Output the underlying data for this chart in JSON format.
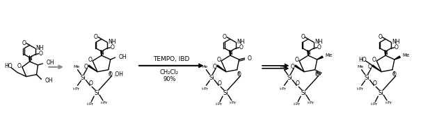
{
  "background_color": "#ffffff",
  "arrow1_color": "#888888",
  "arrow2_color": "#000000",
  "arrow3_color": "#000000",
  "reaction_label_line1": "TEMPO, IBD",
  "reaction_label_line2": "CH₂Cl₂",
  "reaction_label_line3": "90%",
  "bond_color": "#000000",
  "figsize": [
    6.41,
    1.69
  ],
  "dpi": 100
}
